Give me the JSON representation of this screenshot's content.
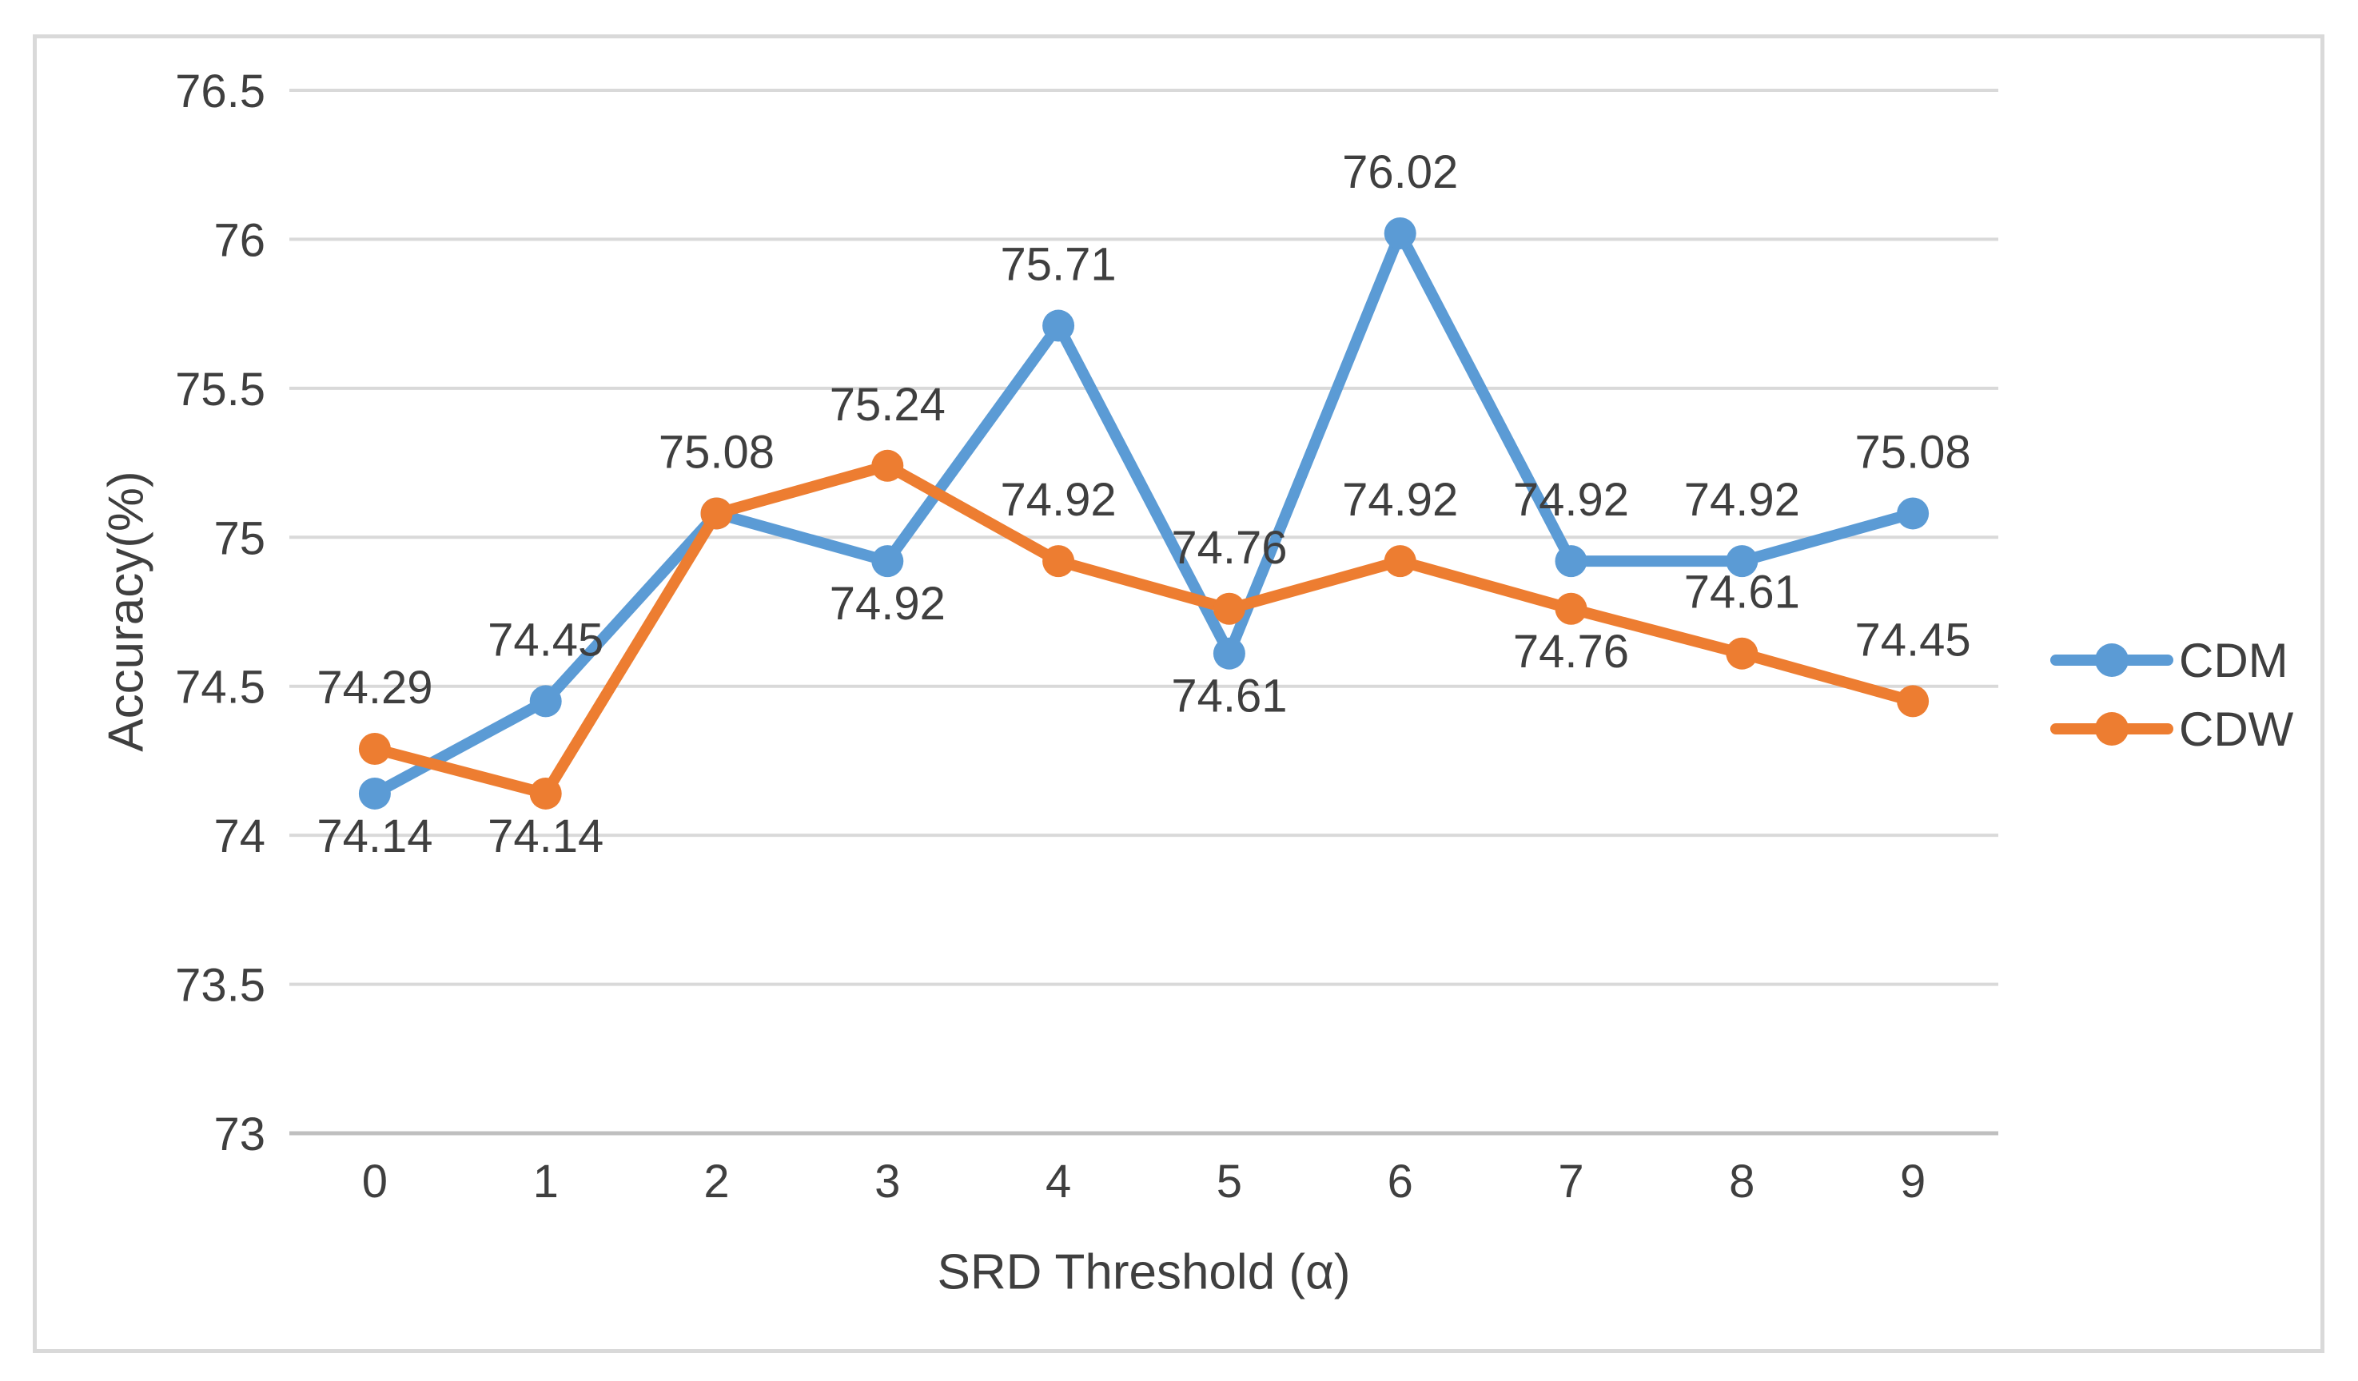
{
  "chart_data": {
    "type": "line",
    "title": "",
    "xlabel": "SRD Threshold (α)",
    "ylabel": "Accuracy(%)",
    "categories": [
      0,
      1,
      2,
      3,
      4,
      5,
      6,
      7,
      8,
      9
    ],
    "x_tick_labels": [
      "0",
      "1",
      "2",
      "3",
      "4",
      "5",
      "6",
      "7",
      "8",
      "9"
    ],
    "y_ticks": [
      76.5,
      76,
      75.5,
      75,
      74.5,
      74,
      73.5,
      73
    ],
    "y_tick_labels": [
      "76.5",
      "76",
      "75.5",
      "75",
      "74.5",
      "74",
      "73.5",
      "73"
    ],
    "ylim": [
      73,
      76.5
    ],
    "grid": true,
    "legend_position": "right",
    "series": [
      {
        "name": "CDM",
        "color": "#5B9BD5",
        "values": [
          74.14,
          74.45,
          75.08,
          74.92,
          75.71,
          74.61,
          76.02,
          74.92,
          74.92,
          75.08
        ],
        "data_labels": [
          "74.14",
          "74.45",
          "75.08",
          "74.92",
          "75.71",
          "74.61",
          "76.02",
          "74.92",
          "74.92",
          "75.08"
        ],
        "label_positions": [
          "below",
          "above",
          "above",
          "below",
          "above",
          "below",
          "above",
          "above",
          "above",
          "above"
        ]
      },
      {
        "name": "CDW",
        "color": "#ED7D31",
        "values": [
          74.29,
          74.14,
          75.08,
          75.24,
          74.92,
          74.76,
          74.92,
          74.76,
          74.61,
          74.45
        ],
        "data_labels": [
          "74.29",
          "74.14",
          "",
          "75.24",
          "74.92",
          "74.76",
          "74.92",
          "74.76",
          "74.61",
          "74.45"
        ],
        "label_positions": [
          "above",
          "below",
          null,
          "above",
          "above",
          "above",
          "above",
          "below",
          "above",
          "above"
        ]
      }
    ],
    "colors": {
      "grid": "#D9D9D9",
      "axis": "#BFBFBF",
      "text": "#3F3F3F",
      "frame_border": "#D9D9D9",
      "background": "#FFFFFF"
    }
  }
}
